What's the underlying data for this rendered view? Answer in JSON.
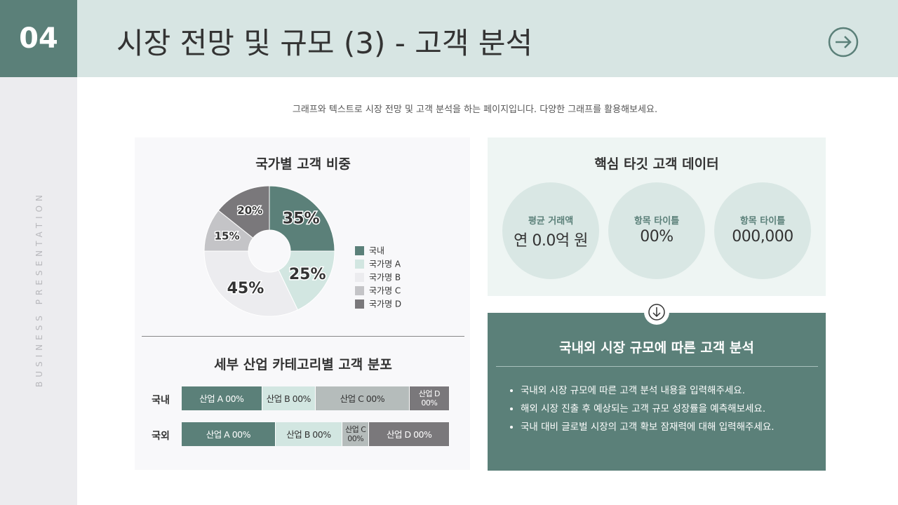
{
  "header": {
    "number": "04",
    "title": "시장 전망 및 규모 (3) - 고객 분석"
  },
  "sidebar": "BUSINESS PRESENTATION",
  "subtitle": "그래프와 텍스트로 시장 전망 및 고객 분석을 하는 페이지입니다. 다양한 그래프를 활용해보세요.",
  "chart_data": [
    {
      "type": "pie",
      "title": "국가별 고객 비중",
      "categories": [
        "국내",
        "국가명 A",
        "국가명 B",
        "국가명 C",
        "국가명 D"
      ],
      "values": [
        35,
        25,
        45,
        15,
        20
      ],
      "value_labels": [
        "35%",
        "25%",
        "45%",
        "15%",
        "20%"
      ],
      "colors": [
        "#5b8079",
        "#d2e6e1",
        "#ececef",
        "#c4c4c7",
        "#7a787b"
      ],
      "legend": "right"
    },
    {
      "type": "stacked-bar",
      "orientation": "horizontal",
      "title": "세부 산업 카테고리별 고객 분포",
      "categories": [
        "국내",
        "국외"
      ],
      "series": [
        {
          "name": "산업 A 00%",
          "color": "#5b8079",
          "values": [
            30,
            35
          ]
        },
        {
          "name": "산업 B 00%",
          "color": "#d2e6e1",
          "values": [
            20,
            25
          ]
        },
        {
          "name": "산업 C 00%",
          "color": "#b5bcbb",
          "values": [
            35,
            10
          ]
        },
        {
          "name": "산업 D 00%",
          "color": "#7a787b",
          "values": [
            15,
            30
          ]
        }
      ]
    }
  ],
  "kpi": {
    "title": "핵심 타깃 고객 데이터",
    "items": [
      {
        "label": "평균 거래액",
        "value": "연 0.0억 원"
      },
      {
        "label": "항목 타이틀",
        "value": "00%"
      },
      {
        "label": "항목 타이틀",
        "value": "000,000"
      }
    ]
  },
  "analysis": {
    "title": "국내외 시장 규모에 따른 고객 분석",
    "bullets": [
      "국내외 시장 규모에 따른 고객 분석 내용을 입력해주세요.",
      "해외 시장 진출 후 예상되는 고객 규모 성장률을 예측해보세요.",
      "국내 대비 글로벌 시장의 고객 확보 잠재력에 대해 입력해주세요."
    ]
  }
}
